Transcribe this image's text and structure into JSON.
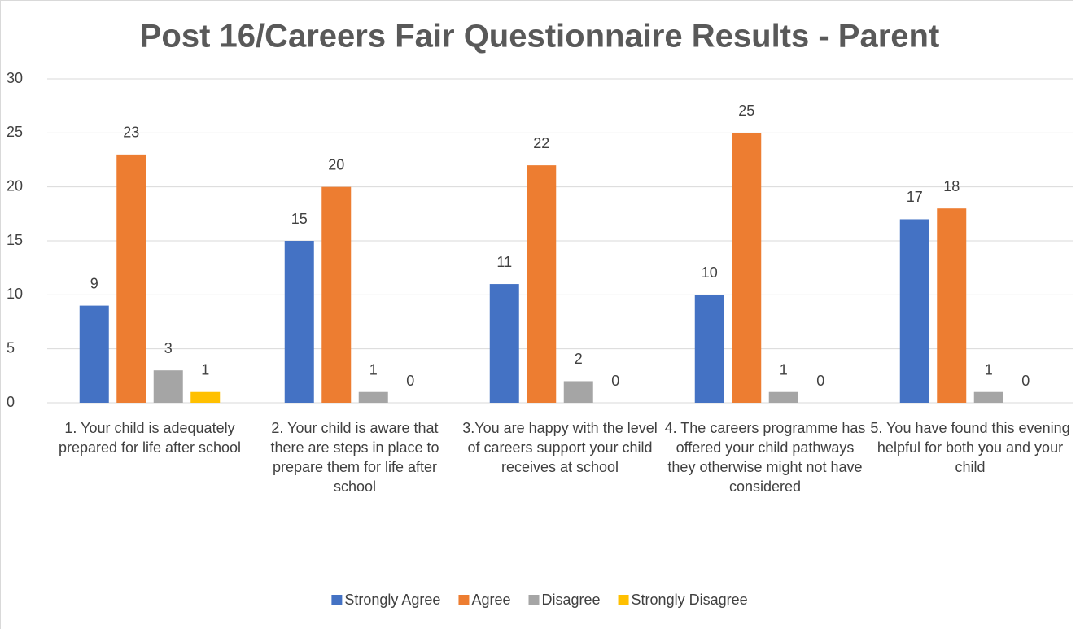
{
  "chart_data": {
    "type": "bar",
    "title": "Post 16/Careers Fair Questionnaire Results - Parent",
    "categories": [
      "1. Your child is adequately prepared for life after school",
      "2. Your child is aware that there are steps in place to prepare them for life after school",
      "3.You are happy with the level of careers support your child receives at school",
      "4. The careers programme has offered your child pathways they otherwise might not have considered",
      "5. You have found this evening helpful for both you and your child"
    ],
    "series": [
      {
        "name": "Strongly Agree",
        "color": "#4472c4",
        "values": [
          9,
          15,
          11,
          10,
          17
        ]
      },
      {
        "name": "Agree",
        "color": "#ed7d31",
        "values": [
          23,
          20,
          22,
          25,
          18
        ]
      },
      {
        "name": "Disagree",
        "color": "#a5a5a5",
        "values": [
          3,
          1,
          2,
          1,
          1
        ]
      },
      {
        "name": "Strongly Disagree",
        "color": "#ffc000",
        "values": [
          1,
          0,
          0,
          0,
          0
        ]
      }
    ],
    "ylim": [
      0,
      30
    ],
    "yticks": [
      0,
      5,
      10,
      15,
      20,
      25,
      30
    ],
    "grid": true,
    "legend": "bottom"
  }
}
